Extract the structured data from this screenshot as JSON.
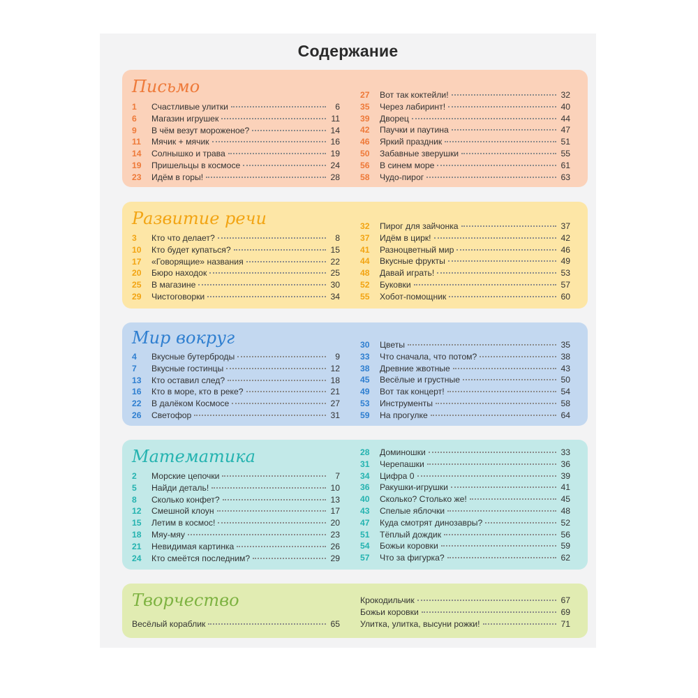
{
  "title": "Содержание",
  "sections": [
    {
      "title": "Письмо",
      "bg": "#fbd2ba",
      "accent": "#ee7a3a",
      "left": [
        {
          "num": "1",
          "text": "Счастливые улитки",
          "page": "6"
        },
        {
          "num": "6",
          "text": "Магазин игрушек",
          "page": "11"
        },
        {
          "num": "9",
          "text": "В чём везут мороженое?",
          "page": "14"
        },
        {
          "num": "11",
          "text": "Мячик + мячик",
          "page": "16"
        },
        {
          "num": "14",
          "text": "Солнышко и трава",
          "page": "19"
        },
        {
          "num": "19",
          "text": "Пришельцы в космосе",
          "page": "24"
        },
        {
          "num": "23",
          "text": "Идём в горы!",
          "page": "28"
        }
      ],
      "right": [
        {
          "num": "27",
          "text": "Вот так коктейли!",
          "page": "32"
        },
        {
          "num": "35",
          "text": "Через лабиринт!",
          "page": "40"
        },
        {
          "num": "39",
          "text": "Дворец",
          "page": "44"
        },
        {
          "num": "42",
          "text": "Паучки и паутина",
          "page": "47"
        },
        {
          "num": "46",
          "text": "Яркий праздник",
          "page": "51"
        },
        {
          "num": "50",
          "text": "Забавные зверушки",
          "page": "55"
        },
        {
          "num": "56",
          "text": "В синем море",
          "page": "61"
        },
        {
          "num": "58",
          "text": "Чудо-пирог",
          "page": "63"
        }
      ]
    },
    {
      "title": "Развитие речи",
      "bg": "#fde6a6",
      "accent": "#f2a413",
      "left": [
        {
          "num": "3",
          "text": "Кто что делает?",
          "page": "8"
        },
        {
          "num": "10",
          "text": "Кто будет купаться?",
          "page": "15"
        },
        {
          "num": "17",
          "text": "«Говорящие» названия",
          "page": "22"
        },
        {
          "num": "20",
          "text": "Бюро находок",
          "page": "25"
        },
        {
          "num": "25",
          "text": "В магазине",
          "page": "30"
        },
        {
          "num": "29",
          "text": "Чистоговорки",
          "page": "34"
        }
      ],
      "right": [
        {
          "num": "32",
          "text": "Пирог для зайчонка",
          "page": "37"
        },
        {
          "num": "37",
          "text": "Идём в цирк!",
          "page": "42"
        },
        {
          "num": "41",
          "text": "Разноцветный мир",
          "page": "46"
        },
        {
          "num": "44",
          "text": "Вкусные фрукты",
          "page": "49"
        },
        {
          "num": "48",
          "text": "Давай играть!",
          "page": "53"
        },
        {
          "num": "52",
          "text": "Буковки",
          "page": "57"
        },
        {
          "num": "55",
          "text": "Хобот-помощник",
          "page": "60"
        }
      ]
    },
    {
      "title": "Мир вокруг",
      "bg": "#c3d8f0",
      "accent": "#2f7fd0",
      "left": [
        {
          "num": "4",
          "text": "Вкусные бутерброды",
          "page": "9"
        },
        {
          "num": "7",
          "text": "Вкусные гостинцы",
          "page": "12"
        },
        {
          "num": "13",
          "text": "Кто оставил след?",
          "page": "18"
        },
        {
          "num": "16",
          "text": "Кто в море, кто в реке?",
          "page": "21"
        },
        {
          "num": "22",
          "text": "В далёком Космосе",
          "page": "27"
        },
        {
          "num": "26",
          "text": "Светофор",
          "page": "31"
        }
      ],
      "right": [
        {
          "num": "30",
          "text": "Цветы",
          "page": "35"
        },
        {
          "num": "33",
          "text": "Что сначала, что потом?",
          "page": "38"
        },
        {
          "num": "38",
          "text": "Древние жвотные",
          "page": "43"
        },
        {
          "num": "45",
          "text": "Весёлые и грустные",
          "page": "50"
        },
        {
          "num": "49",
          "text": "Вот так концерт!",
          "page": "54"
        },
        {
          "num": "53",
          "text": "Инструменты",
          "page": "58"
        },
        {
          "num": "59",
          "text": "На прогулке",
          "page": "64"
        }
      ]
    },
    {
      "title": "Математика",
      "bg": "#c2e9e8",
      "accent": "#25b3b0",
      "left": [
        {
          "num": "2",
          "text": "Морские цепочки",
          "page": "7"
        },
        {
          "num": "5",
          "text": "Найди деталь!",
          "page": "10"
        },
        {
          "num": "8",
          "text": "Сколько конфет?",
          "page": "13"
        },
        {
          "num": "12",
          "text": "Смешной клоун",
          "page": "17"
        },
        {
          "num": "15",
          "text": "Летим в космос!",
          "page": "20"
        },
        {
          "num": "18",
          "text": "Мяу-мяу",
          "page": "23"
        },
        {
          "num": "21",
          "text": "Невидимая картинка",
          "page": "26"
        },
        {
          "num": "24",
          "text": "Кто смеётся последним?",
          "page": "29"
        }
      ],
      "right": [
        {
          "num": "28",
          "text": "Доминошки",
          "page": "33"
        },
        {
          "num": "31",
          "text": "Черепашки",
          "page": "36"
        },
        {
          "num": "34",
          "text": "Цифра 0",
          "page": "39"
        },
        {
          "num": "36",
          "text": "Ракушки-игрушки",
          "page": "41"
        },
        {
          "num": "40",
          "text": "Сколько? Столько же!",
          "page": "45"
        },
        {
          "num": "43",
          "text": "Спелые яблочки",
          "page": "48"
        },
        {
          "num": "47",
          "text": "Куда смотрят динозавры?",
          "page": "52"
        },
        {
          "num": "51",
          "text": "Тёплый дождик",
          "page": "56"
        },
        {
          "num": "54",
          "text": "Божьи коровки",
          "page": "59"
        },
        {
          "num": "57",
          "text": "Что за фигурка?",
          "page": "62"
        }
      ]
    },
    {
      "title": "Творчество",
      "bg": "#e1ecb2",
      "accent": "#7db241",
      "left": [
        {
          "num": "",
          "text": "Весёлый кораблик",
          "page": "65"
        }
      ],
      "right": [
        {
          "num": "",
          "text": "Крокодильчик",
          "page": "67"
        },
        {
          "num": "",
          "text": "Божьи коровки",
          "page": "69"
        },
        {
          "num": "",
          "text": "Улитка, улитка, высуни рожки!",
          "page": "71"
        }
      ]
    }
  ]
}
